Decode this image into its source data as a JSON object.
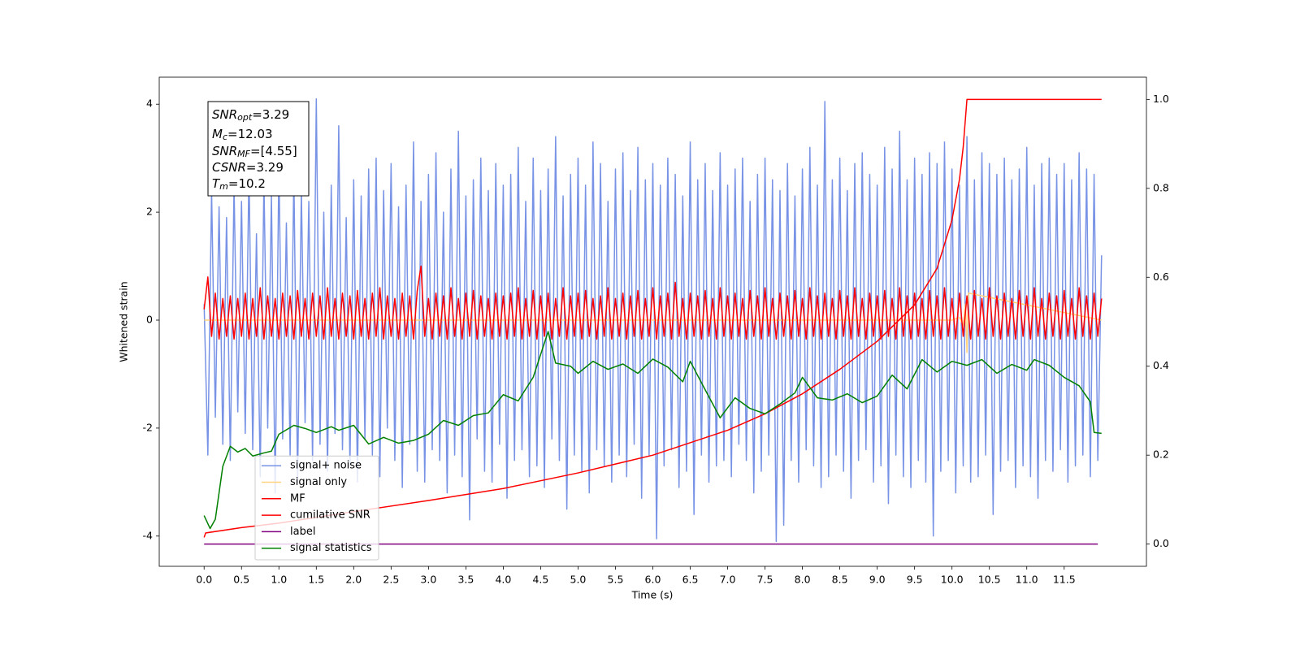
{
  "chart_data": {
    "type": "line",
    "xlabel": "Time (s)",
    "ylabel": "Whitened strain",
    "xlim": [
      -0.6,
      12.6
    ],
    "ylim": [
      -4.56,
      4.5
    ],
    "y2lim": [
      -0.05,
      1.05
    ],
    "xticks": [
      {
        "value": 0,
        "label": "0.0"
      },
      0.5,
      {
        "value": 1,
        "label": "1.0"
      },
      1.5,
      {
        "value": 2,
        "label": "2.0"
      },
      2.5,
      {
        "value": 3,
        "label": "3.0"
      },
      3.5,
      {
        "value": 4,
        "label": "4.0"
      },
      4.5,
      {
        "value": 5,
        "label": "5.0"
      },
      5.5,
      {
        "value": 6,
        "label": "6.0"
      },
      6.5,
      {
        "value": 7,
        "label": "7.0"
      },
      7.5,
      {
        "value": 8,
        "label": "8.0"
      },
      8.5,
      {
        "value": 9,
        "label": "9.0"
      },
      9.5,
      {
        "value": 10,
        "label": "10.0"
      },
      10.5,
      {
        "value": 11,
        "label": "11.0"
      },
      11.5
    ],
    "yticks": [
      -4,
      -2,
      0,
      2,
      4
    ],
    "y2ticks": [
      {
        "value": 0,
        "label": "0.0"
      },
      0.2,
      0.4,
      0.6,
      0.8,
      {
        "value": 1,
        "label": "1.0"
      }
    ],
    "grid": false,
    "legend_loc": "lower left",
    "annotations": [
      {
        "symbol": "SNR",
        "subscript": "opt",
        "text": "=3.29"
      },
      {
        "symbol": "M",
        "subscript": "c",
        "text": "=12.03"
      },
      {
        "symbol": "SNR",
        "subscript": "MF",
        "text": "=[4.55]"
      },
      {
        "symbol": "CSNR",
        "text": "=3.29"
      },
      {
        "symbol": "T",
        "subscript": "m",
        "text": "=10.2"
      }
    ],
    "x": [
      0,
      0.05,
      0.1,
      0.15,
      0.2,
      0.25,
      0.3,
      0.35,
      0.4,
      0.45,
      0.5,
      0.55,
      0.6,
      0.65,
      0.7,
      0.75,
      0.8,
      0.85,
      0.9,
      0.95,
      1,
      1.05,
      1.1,
      1.15,
      1.2,
      1.25,
      1.3,
      1.35,
      1.4,
      1.45,
      1.5,
      1.55,
      1.6,
      1.65,
      1.7,
      1.75,
      1.8,
      1.85,
      1.9,
      1.95,
      2,
      2.05,
      2.1,
      2.15,
      2.2,
      2.25,
      2.3,
      2.35,
      2.4,
      2.45,
      2.5,
      2.55,
      2.6,
      2.65,
      2.7,
      2.75,
      2.8,
      2.85,
      2.9,
      2.95,
      3,
      3.05,
      3.1,
      3.15,
      3.2,
      3.25,
      3.3,
      3.35,
      3.4,
      3.45,
      3.5,
      3.55,
      3.6,
      3.65,
      3.7,
      3.75,
      3.8,
      3.85,
      3.9,
      3.95,
      4,
      4.05,
      4.1,
      4.15,
      4.2,
      4.25,
      4.3,
      4.35,
      4.4,
      4.45,
      4.5,
      4.55,
      4.6,
      4.65,
      4.7,
      4.75,
      4.8,
      4.85,
      4.9,
      4.95,
      5,
      5.05,
      5.1,
      5.15,
      5.2,
      5.25,
      5.3,
      5.35,
      5.4,
      5.45,
      5.5,
      5.55,
      5.6,
      5.65,
      5.7,
      5.75,
      5.8,
      5.85,
      5.9,
      5.95,
      6,
      6.05,
      6.1,
      6.15,
      6.2,
      6.25,
      6.3,
      6.35,
      6.4,
      6.45,
      6.5,
      6.55,
      6.6,
      6.65,
      6.7,
      6.75,
      6.8,
      6.85,
      6.9,
      6.95,
      7,
      7.05,
      7.1,
      7.15,
      7.2,
      7.25,
      7.3,
      7.35,
      7.4,
      7.45,
      7.5,
      7.55,
      7.6,
      7.65,
      7.7,
      7.75,
      7.8,
      7.85,
      7.9,
      7.95,
      8,
      8.05,
      8.1,
      8.15,
      8.2,
      8.25,
      8.3,
      8.35,
      8.4,
      8.45,
      8.5,
      8.55,
      8.6,
      8.65,
      8.7,
      8.75,
      8.8,
      8.85,
      8.9,
      8.95,
      9,
      9.05,
      9.1,
      9.15,
      9.2,
      9.25,
      9.3,
      9.35,
      9.4,
      9.45,
      9.5,
      9.55,
      9.6,
      9.65,
      9.7,
      9.75,
      9.8,
      9.85,
      9.9,
      9.95,
      10,
      10.05,
      10.1,
      10.15,
      10.2,
      10.25,
      10.3,
      10.35,
      10.4,
      10.45,
      10.5,
      10.55,
      10.6,
      10.65,
      10.7,
      10.75,
      10.8,
      10.85,
      10.9,
      10.95,
      11,
      11.05,
      11.1,
      11.15,
      11.2,
      11.25,
      11.3,
      11.35,
      11.4,
      11.45,
      11.5,
      11.55,
      11.6,
      11.65,
      11.7,
      11.75,
      11.8,
      11.85,
      11.9,
      11.95,
      12
    ],
    "series": [
      {
        "name": "signal+ noise",
        "color": "#7893e6",
        "values": [
          0.3,
          -2.5,
          2.4,
          -1.8,
          2.1,
          -2.3,
          1.9,
          -2.6,
          2.5,
          -1.7,
          2.2,
          -2.1,
          2.8,
          -2.4,
          1.6,
          -2.9,
          2.6,
          -2.0,
          2.3,
          -3.2,
          2.9,
          -2.2,
          1.8,
          -2.5,
          2.7,
          -3.0,
          2.4,
          -1.9,
          2.2,
          -2.6,
          4.1,
          -2.3,
          2.0,
          -2.8,
          2.5,
          -2.1,
          3.6,
          -2.4,
          1.9,
          -2.7,
          2.6,
          -3.0,
          2.3,
          -2.2,
          2.8,
          -2.5,
          3.0,
          -2.9,
          2.4,
          -2.0,
          2.9,
          -2.6,
          2.1,
          -3.1,
          2.5,
          -2.3,
          3.3,
          -2.8,
          2.2,
          -3.0,
          2.7,
          -2.4,
          3.1,
          -2.6,
          2.0,
          -3.2,
          2.8,
          -2.5,
          3.5,
          -2.9,
          2.3,
          -3.7,
          2.6,
          -2.2,
          3.0,
          -2.8,
          2.4,
          -3.0,
          2.9,
          -2.3,
          2.5,
          -3.3,
          2.7,
          -2.6,
          3.2,
          -2.4,
          2.2,
          -2.9,
          3.0,
          -2.7,
          2.4,
          -3.1,
          2.8,
          -2.2,
          3.4,
          -2.6,
          2.3,
          -3.5,
          2.7,
          -2.5,
          3.0,
          -2.8,
          2.5,
          -3.2,
          3.3,
          -2.4,
          2.9,
          -2.7,
          2.2,
          -3.0,
          2.8,
          -2.5,
          3.1,
          -2.9,
          2.4,
          -2.3,
          3.2,
          -3.3,
          2.6,
          -2.5,
          2.9,
          -4.05,
          2.5,
          -2.7,
          3.0,
          -2.4,
          2.7,
          -3.1,
          2.3,
          -2.8,
          3.3,
          -3.6,
          2.6,
          -2.5,
          2.9,
          -3.0,
          2.4,
          -2.7,
          3.1,
          -2.6,
          2.5,
          -2.9,
          2.8,
          -2.3,
          3.0,
          -2.6,
          2.2,
          -3.2,
          2.7,
          -2.8,
          3.0,
          -2.5,
          2.6,
          -4.1,
          2.4,
          -3.8,
          2.9,
          -2.6,
          2.3,
          -3.0,
          2.8,
          -2.4,
          3.2,
          -2.7,
          2.5,
          -3.1,
          4.05,
          -2.9,
          2.6,
          -2.5,
          3.0,
          -2.8,
          2.4,
          -3.3,
          2.9,
          -2.6,
          3.1,
          -2.4,
          2.7,
          -3.0,
          2.5,
          -2.7,
          3.2,
          -3.4,
          2.8,
          -2.5,
          3.5,
          -2.9,
          2.6,
          -3.1,
          3.0,
          -2.6,
          2.7,
          -3.0,
          3.1,
          -4.0,
          2.9,
          -2.8,
          3.3,
          -2.6,
          2.8,
          -3.2,
          2.5,
          -2.7,
          3.4,
          -3.0,
          2.6,
          -2.9,
          3.1,
          -2.5,
          2.9,
          -3.6,
          2.7,
          -2.8,
          3.0,
          -2.6,
          2.6,
          -3.1,
          2.8,
          -2.7,
          3.2,
          -2.9,
          2.5,
          -3.3,
          2.9,
          -2.6,
          3.0,
          -2.8,
          2.7,
          -2.4,
          2.9,
          -3.0,
          2.6,
          -2.7,
          3.1,
          -2.5,
          2.8,
          -2.9,
          2.7,
          -2.6,
          1.2
        ]
      },
      {
        "name": "signal only",
        "color": "#ffd280",
        "x": [
          0,
          10.0,
          10.1,
          10.15,
          10.18,
          10.2,
          10.22,
          12.0
        ],
        "values": [
          0,
          0,
          0.05,
          -0.1,
          0.3,
          -0.6,
          0.5,
          0
        ]
      },
      {
        "name": "MF",
        "color": "#ff0000",
        "values": [
          0.2,
          0.8,
          -0.3,
          0.5,
          -0.35,
          0.4,
          -0.3,
          0.45,
          -0.35,
          0.4,
          -0.3,
          0.5,
          -0.35,
          0.4,
          -0.3,
          0.6,
          -0.35,
          0.45,
          -0.3,
          0.4,
          -0.35,
          0.5,
          -0.3,
          0.45,
          -0.35,
          0.55,
          -0.3,
          0.4,
          -0.35,
          0.5,
          -0.3,
          0.45,
          -0.35,
          0.6,
          -0.3,
          0.4,
          -0.35,
          0.5,
          -0.3,
          0.45,
          -0.35,
          0.55,
          -0.3,
          0.4,
          -0.35,
          0.5,
          -0.3,
          0.6,
          -0.35,
          0.45,
          -0.3,
          0.4,
          -0.35,
          0.5,
          -0.3,
          0.45,
          -0.35,
          0.55,
          1.0,
          -0.3,
          0.4,
          -0.35,
          0.5,
          -0.3,
          0.45,
          -0.35,
          0.6,
          -0.3,
          0.4,
          -0.35,
          0.5,
          -0.3,
          0.55,
          -0.35,
          0.45,
          -0.3,
          0.4,
          -0.35,
          0.5,
          -0.3,
          0.45,
          -0.35,
          0.5,
          -0.3,
          0.6,
          -0.35,
          0.4,
          -0.3,
          0.55,
          -0.35,
          0.45,
          -0.3,
          0.5,
          -0.35,
          0.4,
          -0.3,
          0.6,
          -0.35,
          0.45,
          -0.3,
          0.5,
          -0.35,
          0.55,
          -0.3,
          0.4,
          -0.35,
          0.45,
          -0.3,
          0.6,
          -0.35,
          0.4,
          -0.3,
          0.5,
          -0.35,
          0.45,
          -0.3,
          0.55,
          -0.35,
          0.4,
          -0.3,
          0.6,
          -0.35,
          0.45,
          -0.3,
          0.5,
          -0.35,
          0.7,
          -0.3,
          0.4,
          -0.35,
          0.5,
          -0.3,
          0.45,
          -0.35,
          0.55,
          -0.3,
          0.4,
          -0.35,
          0.6,
          -0.3,
          0.45,
          -0.35,
          0.5,
          -0.3,
          0.4,
          -0.35,
          0.55,
          -0.3,
          0.45,
          -0.35,
          0.6,
          -0.3,
          0.4,
          -0.35,
          0.5,
          -0.3,
          0.45,
          -0.35,
          0.55,
          -0.3,
          0.4,
          -0.35,
          0.6,
          -0.3,
          0.45,
          -0.35,
          0.5,
          -0.3,
          0.4,
          -0.35,
          0.55,
          -0.3,
          0.45,
          -0.35,
          0.6,
          -0.3,
          0.4,
          -0.35,
          0.5,
          -0.3,
          0.45,
          -0.35,
          0.55,
          -0.3,
          0.4,
          -0.35,
          0.6,
          -0.3,
          0.45,
          -0.35,
          0.5,
          -0.3,
          0.4,
          -0.35,
          0.55,
          -0.3,
          0.45,
          -0.35,
          0.6,
          -0.3,
          0.4,
          -0.35,
          0.5,
          -0.3,
          0.45,
          -0.35,
          0.55,
          -0.3,
          0.4,
          -0.35,
          0.6,
          -0.3,
          0.45,
          -0.35,
          0.5,
          -0.3,
          0.4,
          -0.35,
          0.55,
          -0.3,
          0.45,
          -0.35,
          0.6,
          -0.3,
          0.4,
          -0.35,
          0.5,
          -0.3,
          0.45,
          -0.35,
          0.55,
          -0.3,
          0.4,
          -0.35,
          0.6,
          -0.3,
          0.45,
          -0.35,
          0.5,
          -0.3,
          0.4
        ]
      },
      {
        "name": "cumilative SNR",
        "color": "#ff0000",
        "axis": "y2",
        "x": [
          0,
          0.02,
          0.5,
          1,
          2,
          3,
          4,
          5,
          6,
          7,
          7.5,
          8,
          8.5,
          9,
          9.5,
          9.8,
          10,
          10.1,
          10.15,
          10.2,
          12
        ],
        "values": [
          0.015,
          0.025,
          0.037,
          0.047,
          0.073,
          0.098,
          0.125,
          0.16,
          0.2,
          0.256,
          0.293,
          0.338,
          0.393,
          0.456,
          0.538,
          0.62,
          0.729,
          0.82,
          0.893,
          1.0,
          1.0
        ]
      },
      {
        "name": "label",
        "color": "#800080",
        "axis": "y2",
        "x": [
          0,
          11.95
        ],
        "values": [
          0,
          0
        ]
      },
      {
        "name": "signal statistics",
        "color": "#008000",
        "axis": "y2",
        "x": [
          0,
          0.08,
          0.15,
          0.25,
          0.35,
          0.45,
          0.55,
          0.65,
          0.8,
          0.9,
          1.0,
          1.2,
          1.35,
          1.5,
          1.7,
          1.8,
          2.0,
          2.2,
          2.4,
          2.6,
          2.8,
          3.0,
          3.2,
          3.4,
          3.6,
          3.8,
          4.0,
          4.2,
          4.4,
          4.6,
          4.7,
          4.9,
          5.0,
          5.2,
          5.4,
          5.6,
          5.8,
          6.0,
          6.2,
          6.4,
          6.5,
          6.7,
          6.9,
          7.1,
          7.3,
          7.5,
          7.7,
          7.9,
          8.0,
          8.2,
          8.4,
          8.6,
          8.8,
          9.0,
          9.2,
          9.4,
          9.6,
          9.8,
          10.0,
          10.2,
          10.4,
          10.6,
          10.8,
          11.0,
          11.1,
          11.3,
          11.5,
          11.7,
          11.85,
          11.9,
          12.0
        ],
        "values": [
          0.064,
          0.035,
          0.056,
          0.175,
          0.22,
          0.207,
          0.215,
          0.198,
          0.205,
          0.209,
          0.247,
          0.267,
          0.26,
          0.251,
          0.264,
          0.256,
          0.267,
          0.225,
          0.24,
          0.227,
          0.233,
          0.247,
          0.278,
          0.267,
          0.289,
          0.295,
          0.336,
          0.322,
          0.375,
          0.478,
          0.407,
          0.4,
          0.384,
          0.411,
          0.393,
          0.405,
          0.384,
          0.416,
          0.398,
          0.365,
          0.411,
          0.347,
          0.284,
          0.329,
          0.305,
          0.293,
          0.315,
          0.34,
          0.375,
          0.329,
          0.324,
          0.338,
          0.318,
          0.333,
          0.38,
          0.349,
          0.415,
          0.387,
          0.411,
          0.402,
          0.415,
          0.384,
          0.404,
          0.391,
          0.415,
          0.402,
          0.375,
          0.356,
          0.32,
          0.251,
          0.249
        ]
      }
    ]
  }
}
